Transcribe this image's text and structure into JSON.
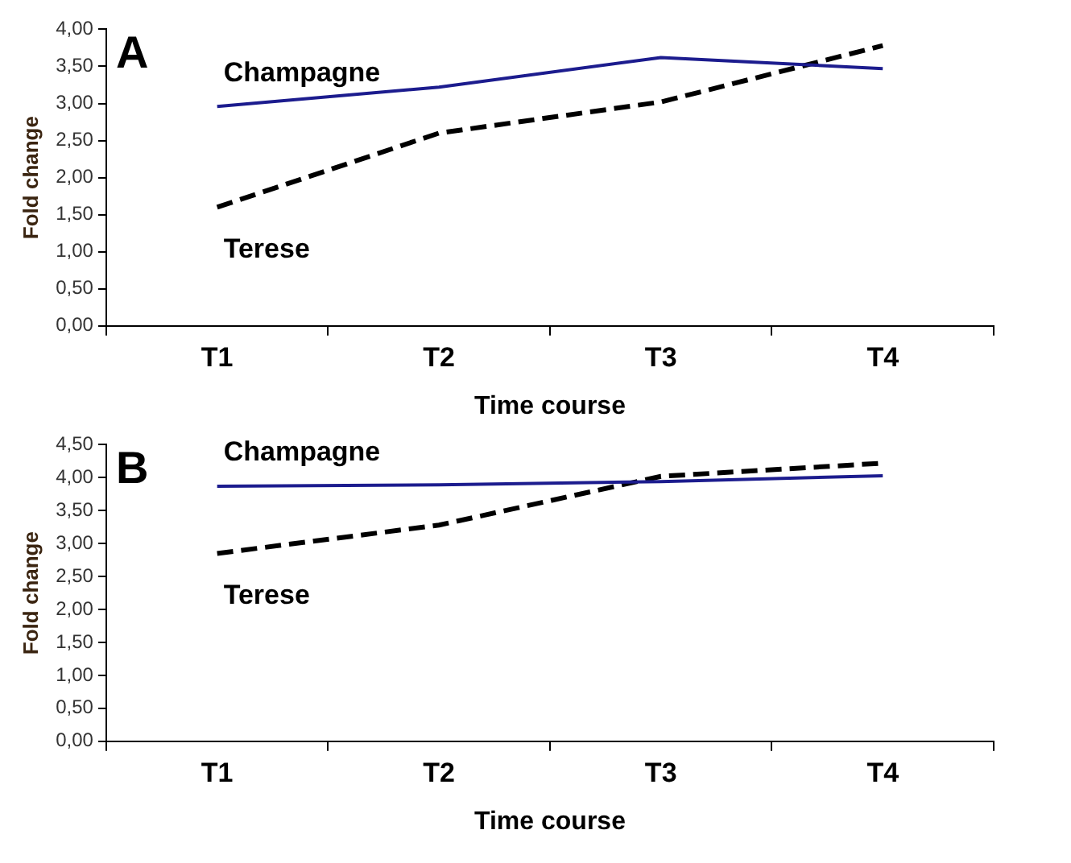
{
  "chart_data": [
    {
      "type": "line",
      "title": "A",
      "xlabel": "Time course",
      "ylabel": "Fold change",
      "categories": [
        "T1",
        "T2",
        "T3",
        "T4"
      ],
      "series": [
        {
          "name": "Champagne",
          "color": "#1c1c8e",
          "line_style": "solid",
          "values": [
            2.96,
            3.22,
            3.62,
            3.47
          ]
        },
        {
          "name": "Terese",
          "color": "#000000",
          "line_style": "dashed",
          "values": [
            1.6,
            2.6,
            3.02,
            3.78
          ]
        }
      ],
      "ylim": [
        0,
        4
      ],
      "yticks": [
        {
          "value": 0,
          "label": "0,00"
        },
        {
          "value": 0.5,
          "label": "0,50"
        },
        {
          "value": 1,
          "label": "1,00"
        },
        {
          "value": 1.5,
          "label": "1,50"
        },
        {
          "value": 2,
          "label": "2,00"
        },
        {
          "value": 2.5,
          "label": "2,50"
        },
        {
          "value": 3,
          "label": "3,00"
        },
        {
          "value": 3.5,
          "label": "3,50"
        },
        {
          "value": 4,
          "label": "4,00"
        }
      ],
      "grid": false,
      "legend": false,
      "marker": "none"
    },
    {
      "type": "line",
      "title": "B",
      "xlabel": "Time course",
      "ylabel": "Fold change",
      "categories": [
        "T1",
        "T2",
        "T3",
        "T4"
      ],
      "series": [
        {
          "name": "Champagne",
          "color": "#1c1c8e",
          "line_style": "solid",
          "values": [
            3.87,
            3.89,
            3.94,
            4.03
          ]
        },
        {
          "name": "Terese",
          "color": "#000000",
          "line_style": "dashed",
          "values": [
            2.85,
            3.28,
            4.02,
            4.22
          ]
        }
      ],
      "ylim": [
        0,
        4.5
      ],
      "yticks": [
        {
          "value": 0,
          "label": "0,00"
        },
        {
          "value": 0.5,
          "label": "0,50"
        },
        {
          "value": 1,
          "label": "1,00"
        },
        {
          "value": 1.5,
          "label": "1,50"
        },
        {
          "value": 2,
          "label": "2,00"
        },
        {
          "value": 2.5,
          "label": "2,50"
        },
        {
          "value": 3,
          "label": "3,00"
        },
        {
          "value": 3.5,
          "label": "3,50"
        },
        {
          "value": 4,
          "label": "4,00"
        },
        {
          "value": 4.5,
          "label": "4,50"
        }
      ],
      "grid": false,
      "legend": false,
      "marker": "none"
    }
  ]
}
